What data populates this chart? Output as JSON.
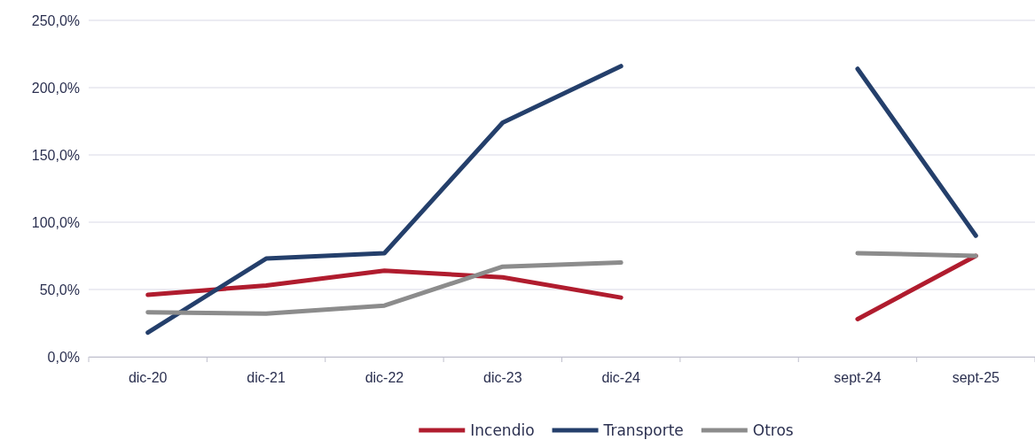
{
  "chart_data": {
    "type": "line",
    "categories": [
      "dic-20",
      "dic-21",
      "dic-22",
      "dic-23",
      "dic-24",
      null,
      "sept-24",
      "sept-25"
    ],
    "series": [
      {
        "name": "Incendio",
        "color": "#b01c2e",
        "values": [
          46,
          53,
          64,
          59,
          44,
          null,
          28,
          75
        ]
      },
      {
        "name": "Transporte",
        "color": "#243f6b",
        "values": [
          18,
          73,
          77,
          174,
          216,
          null,
          214,
          90
        ]
      },
      {
        "name": "Otros",
        "color": "#8c8c8c",
        "values": [
          33,
          32,
          38,
          67,
          70,
          null,
          77,
          75
        ]
      }
    ],
    "ylim": [
      0,
      250
    ],
    "yticks": [
      {
        "value": 0,
        "label": "0,0%"
      },
      {
        "value": 50,
        "label": "50,0%"
      },
      {
        "value": 100,
        "label": "100,0%"
      },
      {
        "value": 150,
        "label": "150,0%"
      },
      {
        "value": 200,
        "label": "200,0%"
      },
      {
        "value": 250,
        "label": "250,0%"
      }
    ],
    "grid": "y",
    "legend": "bottom",
    "marker": "none",
    "line_style": "solid"
  }
}
